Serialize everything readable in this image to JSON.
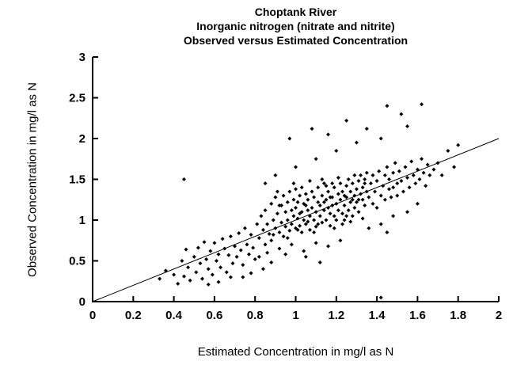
{
  "title": {
    "line1": "Choptank River",
    "line2": "Inorganic nitrogen (nitrate and nitrite)",
    "line3": "Observed versus Estimated Concentration"
  },
  "chart_data": {
    "type": "scatter",
    "title": "Choptank River - Inorganic nitrogen (nitrate and nitrite) - Observed versus Estimated Concentration",
    "xlabel": "Estimated Concentration in mg/l as N",
    "ylabel": "Observed Concentration in mg/l as N",
    "xlim": [
      0,
      2
    ],
    "ylim": [
      0,
      3
    ],
    "grid": false,
    "legend": "none",
    "colors": {
      "axis": "#000000",
      "marker": "#000000",
      "line": "#000000"
    },
    "marker": {
      "shape": "diamond",
      "size": 5
    },
    "x_ticks": [
      {
        "value": 0,
        "label": "0"
      },
      {
        "value": 0.2,
        "label": "0.2"
      },
      {
        "value": 0.4,
        "label": "0.4"
      },
      {
        "value": 0.6,
        "label": "0.6"
      },
      {
        "value": 0.8,
        "label": "0.8"
      },
      {
        "value": 1,
        "label": "1"
      },
      {
        "value": 1.2,
        "label": "1.2"
      },
      {
        "value": 1.4,
        "label": "1.4"
      },
      {
        "value": 1.6,
        "label": "1.6"
      },
      {
        "value": 1.8,
        "label": "1.8"
      },
      {
        "value": 2,
        "label": "2"
      }
    ],
    "y_ticks": [
      {
        "value": 0,
        "label": "0"
      },
      {
        "value": 0.5,
        "label": "0.5"
      },
      {
        "value": 1,
        "label": "1"
      },
      {
        "value": 1.5,
        "label": "1.5"
      },
      {
        "value": 2,
        "label": "2"
      },
      {
        "value": 2.5,
        "label": "2.5"
      },
      {
        "value": 3,
        "label": "3"
      }
    ],
    "reference_line": {
      "from": [
        0,
        0
      ],
      "to": [
        2,
        2
      ],
      "meaning": "1:1 observed equals estimated"
    },
    "points": [
      [
        0.33,
        0.28
      ],
      [
        0.36,
        0.38
      ],
      [
        0.4,
        0.33
      ],
      [
        0.42,
        0.22
      ],
      [
        0.44,
        0.5
      ],
      [
        0.45,
        0.31
      ],
      [
        0.46,
        0.64
      ],
      [
        0.47,
        0.42
      ],
      [
        0.48,
        0.26
      ],
      [
        0.5,
        0.55
      ],
      [
        0.51,
        0.36
      ],
      [
        0.52,
        0.66
      ],
      [
        0.53,
        0.47
      ],
      [
        0.54,
        0.28
      ],
      [
        0.55,
        0.73
      ],
      [
        0.56,
        0.52
      ],
      [
        0.57,
        0.21
      ],
      [
        0.57,
        0.4
      ],
      [
        0.58,
        0.62
      ],
      [
        0.59,
        0.33
      ],
      [
        0.6,
        0.72
      ],
      [
        0.61,
        0.5
      ],
      [
        0.62,
        0.24
      ],
      [
        0.62,
        0.58
      ],
      [
        0.63,
        0.42
      ],
      [
        0.64,
        0.77
      ],
      [
        0.65,
        0.65
      ],
      [
        0.66,
        0.36
      ],
      [
        0.67,
        0.57
      ],
      [
        0.68,
        0.3
      ],
      [
        0.68,
        0.8
      ],
      [
        0.69,
        0.47
      ],
      [
        0.7,
        0.68
      ],
      [
        0.71,
        0.55
      ],
      [
        0.72,
        0.84
      ],
      [
        0.73,
        0.63
      ],
      [
        0.74,
        0.3
      ],
      [
        0.74,
        0.45
      ],
      [
        0.75,
        0.9
      ],
      [
        0.76,
        0.7
      ],
      [
        0.77,
        0.58
      ],
      [
        0.78,
        0.35
      ],
      [
        0.78,
        0.82
      ],
      [
        0.79,
        0.66
      ],
      [
        0.8,
        0.52
      ],
      [
        0.82,
        0.55
      ],
      [
        0.84,
        0.4
      ],
      [
        0.88,
        0.48
      ],
      [
        0.45,
        1.5
      ],
      [
        0.86,
        0.6
      ],
      [
        0.92,
        0.65
      ],
      [
        0.98,
        0.7
      ],
      [
        1.04,
        0.62
      ],
      [
        1.1,
        0.72
      ],
      [
        1.16,
        0.68
      ],
      [
        1.22,
        0.75
      ],
      [
        1.05,
        0.55
      ],
      [
        1.12,
        0.48
      ],
      [
        0.95,
        0.58
      ],
      [
        0.81,
        0.95
      ],
      [
        0.82,
        0.78
      ],
      [
        0.83,
        1.05
      ],
      [
        0.84,
        0.88
      ],
      [
        0.85,
        0.7
      ],
      [
        0.85,
        1.12
      ],
      [
        0.86,
        0.95
      ],
      [
        0.87,
        0.83
      ],
      [
        0.88,
        1.2
      ],
      [
        0.88,
        0.75
      ],
      [
        0.89,
        1.0
      ],
      [
        0.9,
        0.9
      ],
      [
        0.9,
        1.28
      ],
      [
        0.91,
        1.08
      ],
      [
        0.92,
        0.85
      ],
      [
        0.92,
        1.18
      ],
      [
        0.93,
        0.97
      ],
      [
        0.94,
        1.3
      ],
      [
        0.94,
        0.8
      ],
      [
        0.95,
        1.1
      ],
      [
        0.95,
        0.92
      ],
      [
        0.96,
        1.22
      ],
      [
        0.96,
        1.0
      ],
      [
        0.97,
        0.87
      ],
      [
        0.97,
        1.35
      ],
      [
        0.98,
        1.12
      ],
      [
        0.98,
        0.95
      ],
      [
        0.99,
        1.25
      ],
      [
        0.99,
        1.05
      ],
      [
        1.0,
        0.9
      ],
      [
        1.0,
        1.15
      ],
      [
        1.0,
        1.38
      ],
      [
        1.01,
        1.02
      ],
      [
        1.01,
        1.22
      ],
      [
        1.02,
        0.93
      ],
      [
        1.02,
        1.3
      ],
      [
        1.03,
        1.1
      ],
      [
        1.03,
        0.85
      ],
      [
        1.04,
        1.2
      ],
      [
        1.04,
        1.0
      ],
      [
        1.05,
        1.32
      ],
      [
        1.05,
        0.95
      ],
      [
        1.06,
        1.12
      ],
      [
        1.06,
        1.25
      ],
      [
        1.07,
        1.05
      ],
      [
        1.07,
        0.88
      ],
      [
        1.08,
        1.35
      ],
      [
        1.08,
        1.15
      ],
      [
        1.09,
        1.0
      ],
      [
        1.09,
        1.28
      ],
      [
        1.1,
        1.1
      ],
      [
        1.1,
        0.92
      ],
      [
        1.11,
        1.22
      ],
      [
        1.11,
        1.4
      ],
      [
        1.12,
        1.05
      ],
      [
        1.12,
        1.18
      ],
      [
        1.13,
        0.97
      ],
      [
        1.13,
        1.3
      ],
      [
        1.14,
        1.12
      ],
      [
        1.14,
        1.45
      ],
      [
        1.15,
        1.0
      ],
      [
        1.15,
        1.25
      ],
      [
        1.16,
        1.15
      ],
      [
        1.16,
        1.35
      ],
      [
        1.17,
        1.08
      ],
      [
        1.17,
        0.93
      ],
      [
        1.18,
        1.28
      ],
      [
        1.18,
        1.18
      ],
      [
        1.19,
        1.05
      ],
      [
        1.19,
        1.4
      ],
      [
        1.2,
        1.2
      ],
      [
        1.2,
        1.0
      ],
      [
        1.21,
        1.32
      ],
      [
        1.21,
        1.12
      ],
      [
        1.22,
        1.25
      ],
      [
        1.22,
        1.45
      ],
      [
        1.23,
        1.08
      ],
      [
        1.23,
        1.35
      ],
      [
        1.24,
        1.18
      ],
      [
        1.24,
        1.0
      ],
      [
        1.25,
        1.42
      ],
      [
        1.25,
        1.28
      ],
      [
        1.26,
        1.12
      ],
      [
        1.26,
        1.5
      ],
      [
        1.27,
        1.22
      ],
      [
        1.27,
        1.35
      ],
      [
        1.28,
        1.05
      ],
      [
        1.28,
        1.45
      ],
      [
        1.29,
        1.3
      ],
      [
        1.29,
        1.15
      ],
      [
        1.3,
        1.38
      ],
      [
        1.3,
        1.22
      ],
      [
        1.31,
        1.48
      ],
      [
        1.31,
        1.1
      ],
      [
        1.32,
        1.32
      ],
      [
        1.32,
        1.55
      ],
      [
        1.33,
        1.25
      ],
      [
        1.33,
        1.4
      ],
      [
        1.34,
        1.18
      ],
      [
        1.34,
        1.5
      ],
      [
        1.35,
        1.35
      ],
      [
        0.89,
        0.82
      ],
      [
        0.91,
        1.35
      ],
      [
        0.93,
        1.18
      ],
      [
        0.96,
        0.78
      ],
      [
        0.99,
        1.45
      ],
      [
        1.01,
        0.88
      ],
      [
        1.03,
        1.4
      ],
      [
        1.05,
        1.18
      ],
      [
        1.07,
        1.48
      ],
      [
        1.09,
        0.85
      ],
      [
        1.11,
        0.95
      ],
      [
        1.13,
        1.5
      ],
      [
        1.15,
        1.42
      ],
      [
        1.17,
        1.28
      ],
      [
        1.19,
        0.9
      ],
      [
        1.21,
        1.52
      ],
      [
        1.23,
        0.95
      ],
      [
        1.25,
        1.05
      ],
      [
        1.27,
        0.98
      ],
      [
        1.29,
        1.55
      ],
      [
        1.31,
        1.25
      ],
      [
        1.33,
        1.02
      ],
      [
        1.35,
        1.58
      ],
      [
        1.02,
        1.08
      ],
      [
        1.06,
        0.98
      ],
      [
        1.14,
        1.22
      ],
      [
        1.18,
        1.45
      ],
      [
        1.24,
        1.3
      ],
      [
        1.28,
        1.25
      ],
      [
        1.34,
        1.45
      ],
      [
        0.97,
        2.0
      ],
      [
        1.08,
        2.12
      ],
      [
        1.16,
        2.05
      ],
      [
        1.25,
        2.22
      ],
      [
        1.35,
        2.12
      ],
      [
        1.45,
        2.4
      ],
      [
        1.52,
        2.3
      ],
      [
        1.62,
        2.42
      ],
      [
        1.55,
        2.15
      ],
      [
        1.42,
        2.0
      ],
      [
        1.3,
        1.95
      ],
      [
        1.2,
        1.85
      ],
      [
        1.1,
        1.75
      ],
      [
        1.0,
        1.65
      ],
      [
        0.9,
        1.55
      ],
      [
        0.85,
        1.45
      ],
      [
        1.36,
        1.28
      ],
      [
        1.37,
        1.45
      ],
      [
        1.38,
        1.2
      ],
      [
        1.38,
        1.55
      ],
      [
        1.39,
        1.35
      ],
      [
        1.4,
        1.48
      ],
      [
        1.4,
        1.15
      ],
      [
        1.41,
        1.6
      ],
      [
        1.42,
        1.3
      ],
      [
        1.43,
        1.42
      ],
      [
        1.44,
        1.55
      ],
      [
        1.44,
        1.25
      ],
      [
        1.45,
        1.65
      ],
      [
        1.46,
        1.38
      ],
      [
        1.46,
        1.5
      ],
      [
        1.47,
        1.28
      ],
      [
        1.48,
        1.58
      ],
      [
        1.48,
        1.4
      ],
      [
        1.49,
        1.7
      ],
      [
        1.5,
        1.45
      ],
      [
        1.5,
        1.3
      ],
      [
        1.51,
        1.6
      ],
      [
        1.52,
        1.48
      ],
      [
        1.53,
        1.35
      ],
      [
        1.54,
        1.65
      ],
      [
        1.55,
        1.52
      ],
      [
        1.56,
        1.4
      ],
      [
        1.57,
        1.72
      ],
      [
        1.58,
        1.55
      ],
      [
        1.59,
        1.45
      ],
      [
        1.6,
        1.62
      ],
      [
        1.61,
        1.5
      ],
      [
        1.62,
        1.75
      ],
      [
        1.63,
        1.58
      ],
      [
        1.64,
        1.42
      ],
      [
        1.65,
        1.68
      ],
      [
        1.66,
        1.55
      ],
      [
        1.68,
        1.62
      ],
      [
        1.7,
        1.7
      ],
      [
        1.72,
        1.55
      ],
      [
        1.75,
        1.85
      ],
      [
        1.78,
        1.65
      ],
      [
        1.8,
        1.92
      ],
      [
        1.36,
        0.9
      ],
      [
        1.42,
        0.95
      ],
      [
        1.48,
        1.05
      ],
      [
        1.55,
        1.1
      ],
      [
        1.6,
        1.2
      ],
      [
        1.45,
        0.85
      ],
      [
        1.42,
        0.05
      ]
    ]
  }
}
